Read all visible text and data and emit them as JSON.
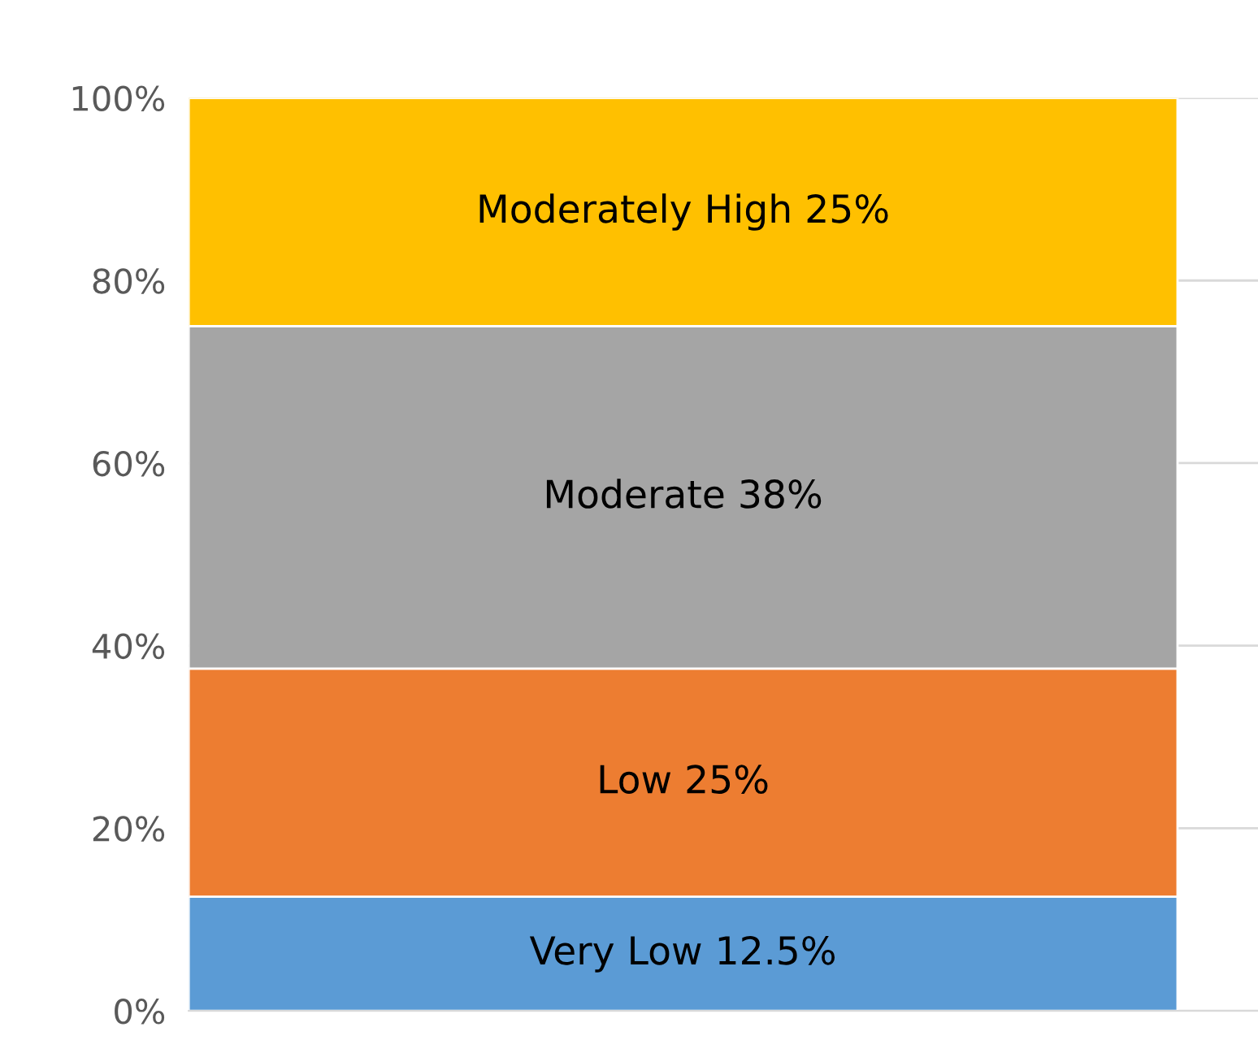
{
  "chart_data": {
    "type": "bar",
    "stacked": true,
    "categories": [
      null
    ],
    "series": [
      {
        "color": "#5b9bd5",
        "values": [
          12.5
        ],
        "value_labels": [
          "Very Low 12.5%"
        ]
      },
      {
        "color": "#ed7d31",
        "values": [
          25
        ],
        "value_labels": [
          "Low 25%"
        ]
      },
      {
        "color": "#a5a5a5",
        "values": [
          37.5
        ],
        "value_labels": [
          "Moderate 38%"
        ]
      },
      {
        "color": "#ffc000",
        "values": [
          25
        ],
        "value_labels": [
          "Moderately High 25%"
        ]
      }
    ],
    "ylim": [
      0,
      100
    ],
    "yticks": [
      {
        "value": 0,
        "label": "0%"
      },
      {
        "value": 20,
        "label": "20%"
      },
      {
        "value": 40,
        "label": "40%"
      },
      {
        "value": 60,
        "label": "60%"
      },
      {
        "value": 80,
        "label": "80%"
      },
      {
        "value": 100,
        "label": "100%"
      }
    ],
    "grid": "y",
    "legend": false
  }
}
